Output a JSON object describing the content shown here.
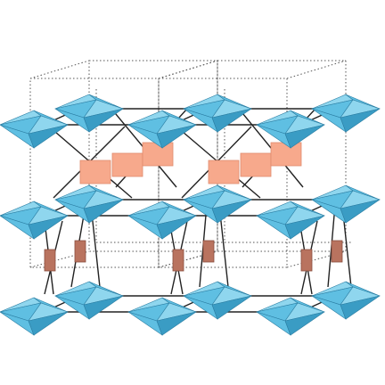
{
  "diagram": {
    "kind": "crystal-structure-polyhedra",
    "unit_cells_shown": 2,
    "layers": 3,
    "polyhedra_per_layer": 6,
    "colors": {
      "background": "#ffffff",
      "octahedron_top": "#8fd6ee",
      "octahedron_face": "#5fbfe2",
      "octahedron_dark": "#3a9cc4",
      "octahedron_edge": "#2b7ea3",
      "square_block": "#f7a98c",
      "square_block_edge": "#e08b6d",
      "pillar_block": "#b9735f",
      "pillar_edge": "#8a4f3f",
      "bond": "#222222",
      "cell_outline": "#555555"
    }
  }
}
